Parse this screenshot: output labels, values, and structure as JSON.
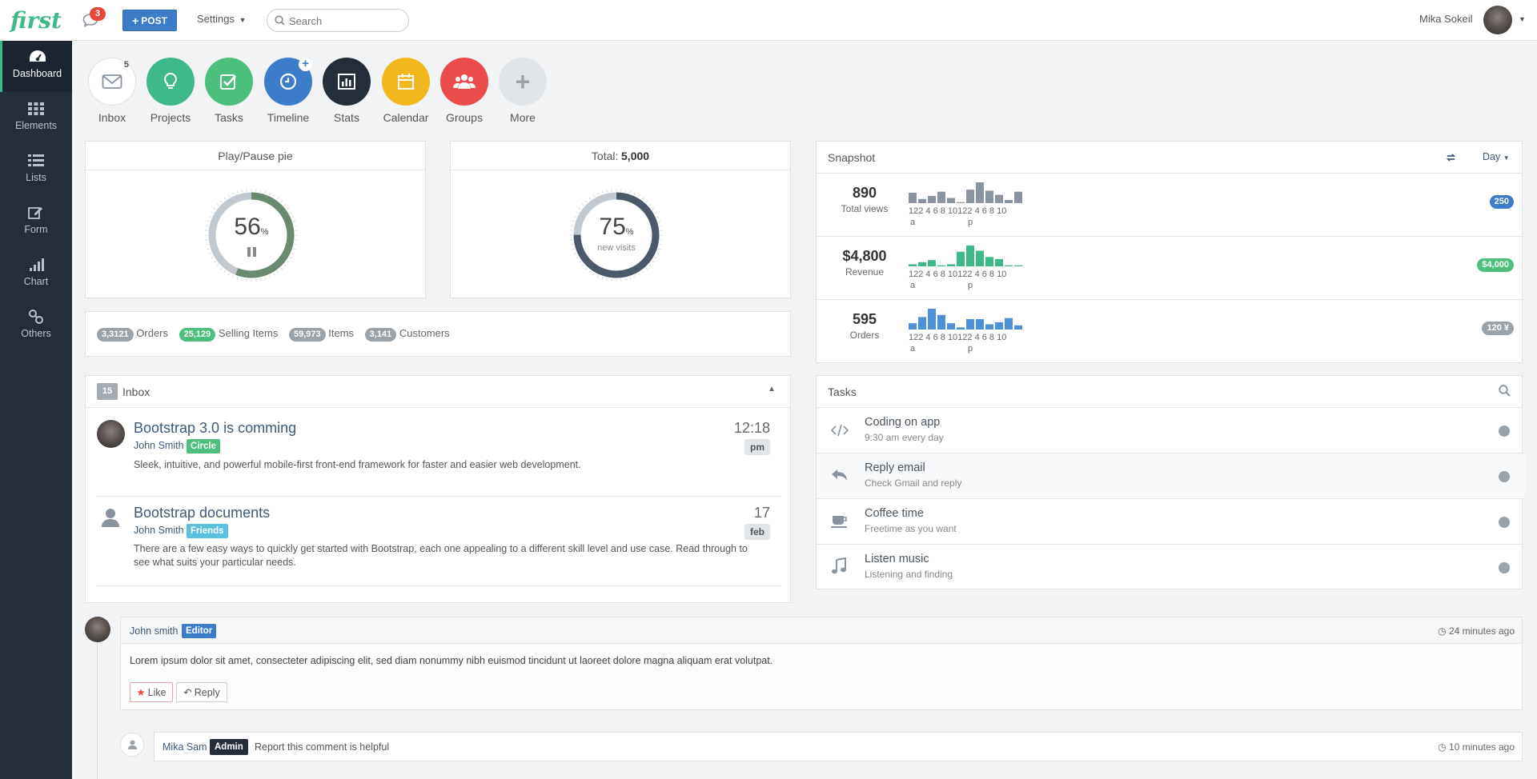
{
  "app": {
    "logo": "first"
  },
  "topbar": {
    "notifications_count": "3",
    "post_label": "POST",
    "settings_label": "Settings",
    "search_placeholder": "Search",
    "user_name": "Mika Sokeil"
  },
  "sidebar": {
    "items": [
      {
        "label": "Dashboard",
        "icon": "dashboard-icon"
      },
      {
        "label": "Elements",
        "icon": "grid-icon"
      },
      {
        "label": "Lists",
        "icon": "list-icon"
      },
      {
        "label": "Form",
        "icon": "edit-icon"
      },
      {
        "label": "Chart",
        "icon": "signal-icon"
      },
      {
        "label": "Others",
        "icon": "link-icon"
      }
    ]
  },
  "quick_links": [
    {
      "label": "Inbox",
      "badge": "5",
      "color": "#ffffff"
    },
    {
      "label": "Projects",
      "color": "#3fb98a"
    },
    {
      "label": "Tasks",
      "color": "#4cbf7d"
    },
    {
      "label": "Timeline",
      "color": "#3d7cc9"
    },
    {
      "label": "Stats",
      "color": "#232e3a"
    },
    {
      "label": "Calendar",
      "color": "#f0b81d"
    },
    {
      "label": "Groups",
      "color": "#ea4c4c"
    },
    {
      "label": "More",
      "color": "#e2e5e8"
    }
  ],
  "pie_panel": {
    "title": "Play/Pause pie",
    "value": "56",
    "unit": "%",
    "fraction": 0.56
  },
  "total_panel": {
    "title_prefix": "Total:",
    "title_value": "5,000",
    "value": "75",
    "unit": "%",
    "sub": "new visits",
    "fraction": 0.75
  },
  "counts": [
    {
      "value": "3,3121",
      "label": "Orders",
      "color": "gray"
    },
    {
      "value": "25,129",
      "label": "Selling Items",
      "color": "green"
    },
    {
      "value": "59,973",
      "label": "Items",
      "color": "gray"
    },
    {
      "value": "3,141",
      "label": "Customers",
      "color": "gray"
    }
  ],
  "snapshot": {
    "title": "Snapshot",
    "range": "Day",
    "hour_labels": "122 4 6 8 10122 4 6 8 10",
    "am": "a",
    "pm": "p",
    "rows": [
      {
        "value": "890",
        "label": "Total views",
        "badge": "250",
        "badge_color": "blue",
        "bar_color": "#8a93a0",
        "bars": [
          0.5,
          0.2,
          0.35,
          0.55,
          0.25,
          0.05,
          0.65,
          1.0,
          0.6,
          0.4,
          0.15,
          0.55
        ]
      },
      {
        "value": "$4,800",
        "label": "Revenue",
        "badge": "$4,000",
        "badge_color": "green",
        "bar_color": "#3fb98a",
        "bars": [
          0.1,
          0.2,
          0.3,
          0.05,
          0.1,
          0.7,
          1.0,
          0.75,
          0.45,
          0.35,
          0.05,
          0.05
        ]
      },
      {
        "value": "595",
        "label": "Orders",
        "badge": "120 ¥",
        "badge_color": "gray",
        "bar_color": "#4d8fd8",
        "bars": [
          0.3,
          0.6,
          1.0,
          0.7,
          0.3,
          0.1,
          0.5,
          0.5,
          0.25,
          0.35,
          0.55,
          0.2
        ]
      }
    ]
  },
  "inbox": {
    "count": "15",
    "title": "Inbox",
    "messages": [
      {
        "title": "Bootstrap 3.0 is comming",
        "from": "John Smith",
        "tag": "Circle",
        "tag_color": "#4cbf7d",
        "body": "Sleek, intuitive, and powerful mobile-first front-end framework for faster and easier web development.",
        "time": "12:18",
        "time_sub": "pm"
      },
      {
        "title": "Bootstrap documents",
        "from": "John Smith",
        "tag": "Friends",
        "tag_color": "#5bc0de",
        "body": "There are a few easy ways to quickly get started with Bootstrap, each one appealing to a different skill level and use case. Read through to see what suits your particular needs.",
        "time": "17",
        "time_sub": "feb"
      }
    ]
  },
  "tasks": {
    "title": "Tasks",
    "items": [
      {
        "title": "Coding on app",
        "sub": "9:30 am every day",
        "icon": "code-icon"
      },
      {
        "title": "Reply email",
        "sub": "Check Gmail and reply",
        "icon": "reply-icon"
      },
      {
        "title": "Coffee time",
        "sub": "Freetime as you want",
        "icon": "coffee-icon"
      },
      {
        "title": "Listen music",
        "sub": "Listening and finding",
        "icon": "music-icon"
      }
    ]
  },
  "comments": [
    {
      "author": "John smith",
      "role": "Editor",
      "time": "24 minutes ago",
      "body": "Lorem ipsum dolor sit amet, consecteter adipiscing elit, sed diam nonummy nibh euismod tincidunt ut laoreet dolore magna aliquam erat volutpat.",
      "like_label": "Like",
      "reply_label": "Reply"
    },
    {
      "author": "Mika Sam",
      "role": "Admin",
      "body": "Report this comment is helpful",
      "time": "10 minutes ago"
    }
  ]
}
